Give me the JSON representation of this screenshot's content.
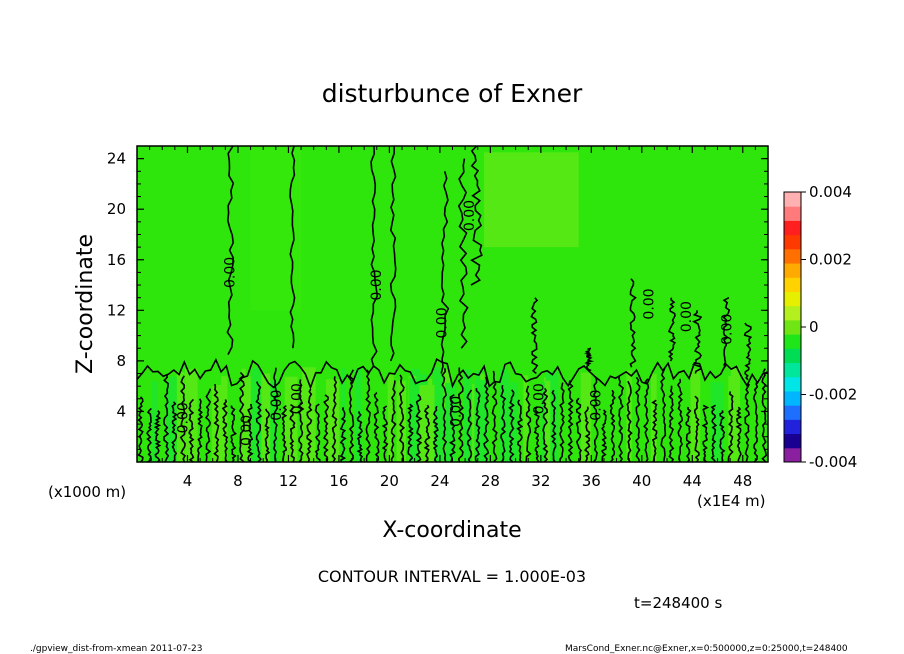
{
  "chart_data": {
    "type": "heatmap",
    "title": "disturbunce of Exner",
    "xlabel": "X-coordinate",
    "ylabel": "Z-coordinate",
    "x_ticks": [
      4,
      8,
      12,
      16,
      20,
      24,
      28,
      32,
      36,
      40,
      44,
      48
    ],
    "y_ticks": [
      4,
      8,
      12,
      16,
      20,
      24
    ],
    "xlim": [
      0,
      50
    ],
    "ylim": [
      0,
      25
    ],
    "x_unit": "(x1E4 m)",
    "y_unit": "(x1000 m)",
    "colorbar": {
      "min": -0.004,
      "max": 0.004,
      "tick_labels": [
        "0.004",
        "0.002",
        "0",
        "-0.002",
        "-0.004"
      ],
      "tick_values": [
        0.004,
        0.002,
        0,
        -0.002,
        -0.004
      ],
      "colors": [
        "#8a1fa0",
        "#1a0090",
        "#2222dd",
        "#1f6fff",
        "#00b7ff",
        "#00e5e5",
        "#00e69a",
        "#00dd55",
        "#1ee619",
        "#6fe614",
        "#b4f01e",
        "#e6ef00",
        "#ffd200",
        "#ffaa00",
        "#ff7000",
        "#ff3a00",
        "#ff1f1f",
        "#ff7a7a",
        "#ffb0b0"
      ]
    },
    "contour_labels": [
      {
        "text": "0.00",
        "x": 7.4,
        "z": 15
      },
      {
        "text": "0.00",
        "x": 19.0,
        "z": 14
      },
      {
        "text": "0.00",
        "x": 26.4,
        "z": 19.5
      },
      {
        "text": "0.00",
        "x": 24.2,
        "z": 11
      },
      {
        "text": "0.00",
        "x": 40.6,
        "z": 12.5
      },
      {
        "text": "0.00",
        "x": 43.6,
        "z": 11.5
      },
      {
        "text": "0.00",
        "x": 46.8,
        "z": 10.5
      },
      {
        "text": "0.00",
        "x": 3.7,
        "z": 3.5
      },
      {
        "text": "0.00",
        "x": 8.7,
        "z": 2.5
      },
      {
        "text": "0.00",
        "x": 11.1,
        "z": 4.5
      },
      {
        "text": "0.00",
        "x": 12.7,
        "z": 5
      },
      {
        "text": "0.00",
        "x": 25.3,
        "z": 4
      },
      {
        "text": "0.00",
        "x": 31.9,
        "z": 5
      },
      {
        "text": "0.00",
        "x": 36.4,
        "z": 4.5
      }
    ],
    "field_value": 0
  },
  "annotations": {
    "contour_interval": "CONTOUR INTERVAL = 1.000E-03",
    "time": "t=248400 s",
    "footer_left": "./gpview_dist-from-xmean  2011-07-23",
    "footer_right": "MarsCond_Exner.nc@Exner,x=0:500000,z=0:25000,t=248400"
  }
}
